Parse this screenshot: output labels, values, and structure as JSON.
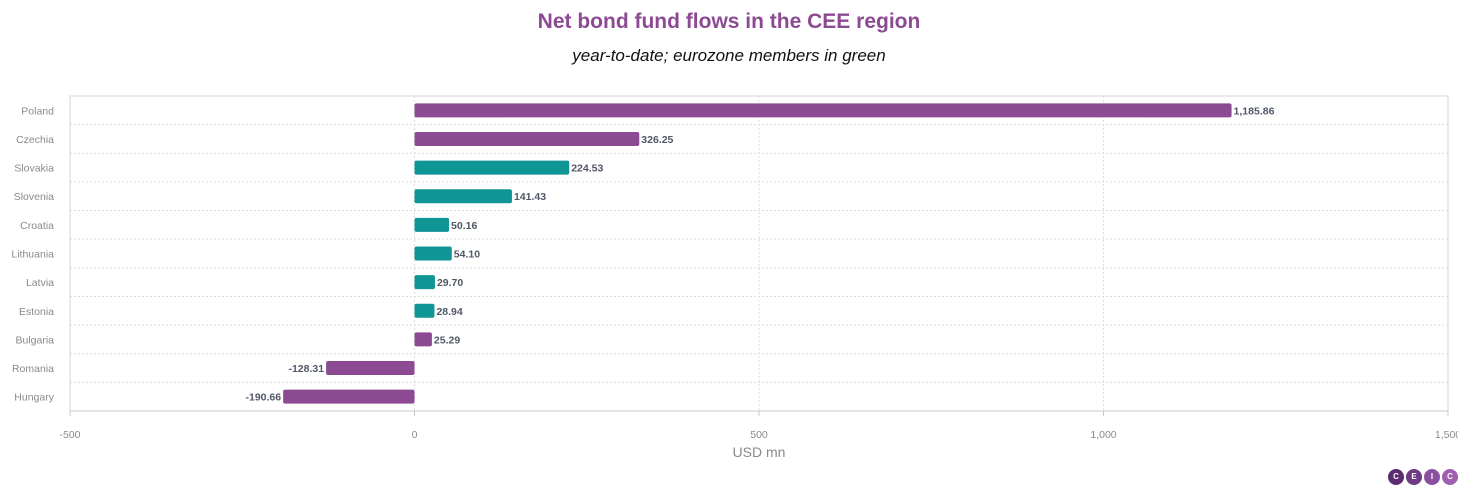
{
  "chart_data": {
    "type": "bar",
    "orientation": "horizontal",
    "title": "Net bond fund flows in the CEE region",
    "subtitle": "year-to-date; eurozone members in green",
    "xlabel": "USD mn",
    "ylabel": "",
    "xlim": [
      -500,
      1500
    ],
    "xticks": [
      -500,
      0,
      500,
      1000,
      1500
    ],
    "xtick_labels": [
      "-500",
      "0",
      "500",
      "1,000",
      "1,500"
    ],
    "grid": true,
    "categories": [
      "Poland",
      "Czechia",
      "Slovakia",
      "Slovenia",
      "Croatia",
      "Lithuania",
      "Latvia",
      "Estonia",
      "Bulgaria",
      "Romania",
      "Hungary"
    ],
    "values": [
      1185.86,
      326.25,
      224.53,
      141.43,
      50.16,
      54.1,
      29.7,
      28.94,
      25.29,
      -128.31,
      -190.66
    ],
    "value_labels": [
      "1,185.86",
      "326.25",
      "224.53",
      "141.43",
      "50.16",
      "54.10",
      "29.70",
      "28.94",
      "25.29",
      "-128.31",
      "-190.66"
    ],
    "eurozone": [
      false,
      false,
      true,
      true,
      true,
      true,
      true,
      true,
      false,
      false,
      false
    ],
    "colors": {
      "non_eurozone": "#8c4a93",
      "eurozone": "#0e9594"
    }
  },
  "logo": {
    "letters": [
      "C",
      "E",
      "I",
      "C"
    ]
  }
}
